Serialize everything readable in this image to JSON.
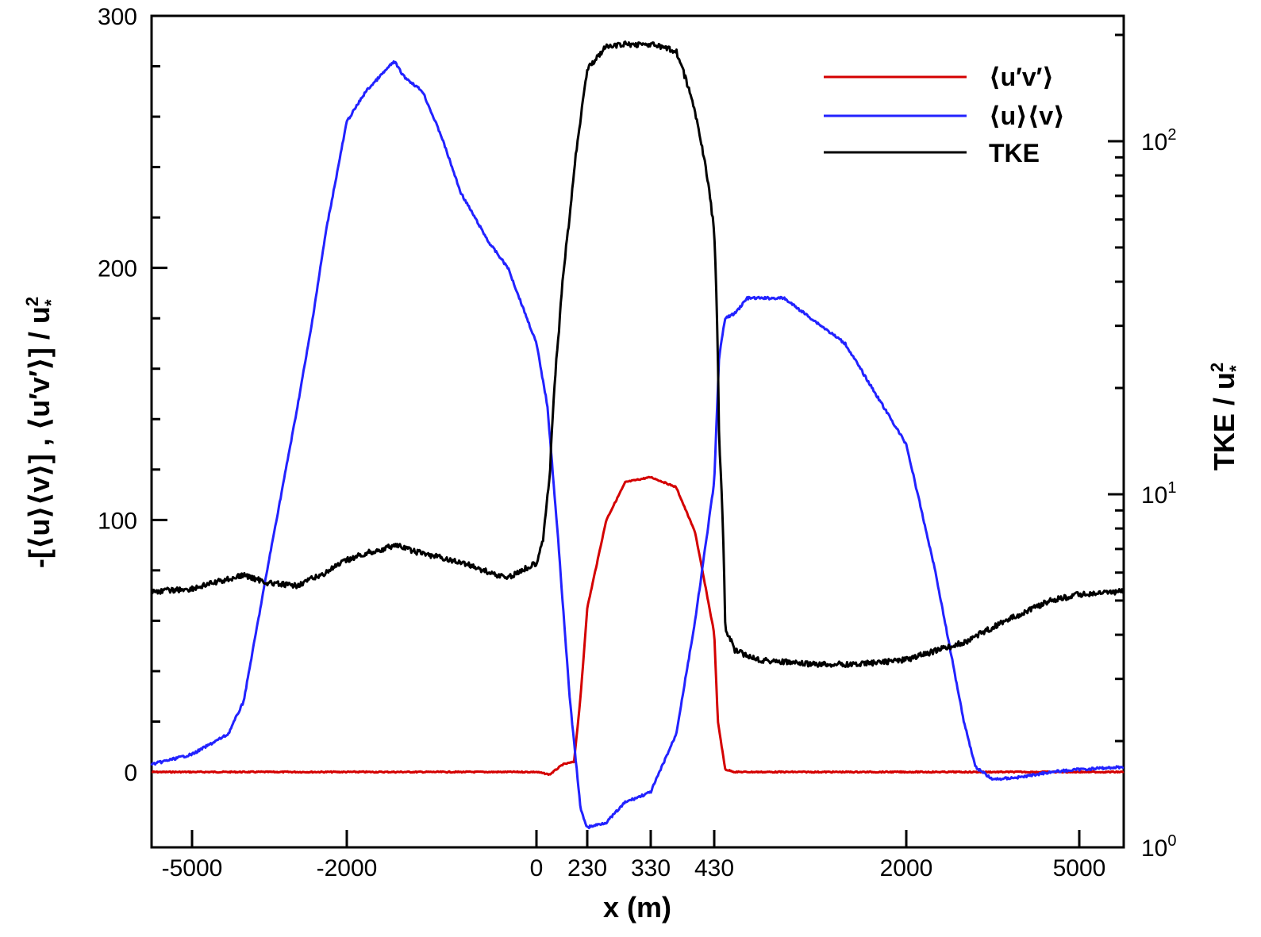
{
  "chart_data": {
    "type": "line",
    "xlabel": "x (m)",
    "ylabel_left": "-[⟨u⟩⟨v⟩]  ,  ⟨u′v′⟩] / u*²",
    "ylabel_left_parts": {
      "main": "-[⟨u⟩⟨v⟩]  ,  ⟨u′v′⟩] / u",
      "sup": "2",
      "sub": "*"
    },
    "ylabel_right": "TKE / u*²",
    "ylabel_right_parts": {
      "main": "TKE / u",
      "sup": "2",
      "sub": "*"
    },
    "x_tick_labels": [
      "-5000",
      "-2000",
      "0",
      "230",
      "330",
      "430",
      "2000",
      "5000"
    ],
    "x_tick_positions": [
      -5000,
      -2000,
      0,
      230,
      330,
      430,
      2000,
      5000
    ],
    "x_scale": "piecewise (stretched near 0–430 m)",
    "left_axis": {
      "ylim": [
        -15,
        300
      ],
      "ticks": [
        0,
        100,
        200,
        300
      ],
      "tick_labels": [
        "0",
        "100",
        "200",
        "300"
      ]
    },
    "right_axis": {
      "scale": "log",
      "ylim": [
        1,
        200
      ],
      "ticks": [
        1,
        10,
        100
      ],
      "tick_labels": [
        "10",
        "10",
        "10"
      ],
      "tick_exponents": [
        "0",
        "1",
        "2"
      ]
    },
    "grid": false,
    "legend_position": "top-right",
    "series": [
      {
        "name": "⟨u′v′⟩",
        "axis": "left",
        "color": "#d40000",
        "x": [
          -5800,
          -5000,
          -2000,
          -500,
          0,
          60,
          120,
          170,
          200,
          230,
          260,
          290,
          330,
          370,
          400,
          430,
          460,
          520,
          600,
          2000,
          5000,
          5800
        ],
        "y": [
          0,
          0,
          0,
          0,
          0,
          -1,
          3,
          4,
          30,
          65,
          100,
          115,
          117,
          113,
          95,
          55,
          20,
          1,
          0,
          0,
          0,
          0
        ]
      },
      {
        "name": "⟨u⟩⟨v⟩",
        "axis": "left",
        "color": "#2222ff",
        "x": [
          -5800,
          -5000,
          -4300,
          -4000,
          -3500,
          -3000,
          -2700,
          -2400,
          -2000,
          -1800,
          -1600,
          -1500,
          -1400,
          -1200,
          -1000,
          -800,
          -500,
          -300,
          0,
          50,
          100,
          150,
          200,
          230,
          260,
          290,
          330,
          370,
          400,
          430,
          470,
          520,
          600,
          700,
          1000,
          1500,
          2000,
          2500,
          3000,
          3200,
          3500,
          4000,
          4500,
          5000,
          5800
        ],
        "y": [
          3,
          7,
          15,
          28,
          85,
          140,
          175,
          215,
          258,
          270,
          278,
          282,
          276,
          270,
          252,
          230,
          210,
          200,
          170,
          145,
          90,
          30,
          -15,
          -22,
          -20,
          -12,
          -8,
          15,
          60,
          115,
          165,
          180,
          182,
          188,
          188,
          170,
          130,
          80,
          20,
          2,
          -3,
          -2,
          0,
          1,
          2
        ]
      },
      {
        "name": "TKE",
        "axis": "right",
        "color": "#000000",
        "x": [
          -5800,
          -5000,
          -4000,
          -3500,
          -3000,
          -2500,
          -2000,
          -1800,
          -1600,
          -1500,
          -1300,
          -1000,
          -700,
          -500,
          -300,
          -100,
          0,
          30,
          60,
          100,
          150,
          200,
          230,
          260,
          290,
          330,
          370,
          400,
          430,
          470,
          520,
          600,
          800,
          1200,
          1600,
          2000,
          2500,
          3000,
          3500,
          4000,
          4500,
          5000,
          5800
        ],
        "y": [
          5.3,
          5.4,
          5.9,
          5.6,
          5.5,
          5.9,
          6.5,
          6.8,
          7.0,
          7.2,
          6.9,
          6.6,
          6.3,
          6.0,
          5.8,
          6.2,
          6.4,
          7.5,
          11,
          28,
          60,
          115,
          160,
          185,
          188,
          188,
          180,
          120,
          55,
          14,
          4.2,
          3.6,
          3.4,
          3.3,
          3.3,
          3.4,
          3.6,
          3.8,
          4.2,
          4.6,
          5.0,
          5.2,
          5.3
        ]
      }
    ]
  }
}
